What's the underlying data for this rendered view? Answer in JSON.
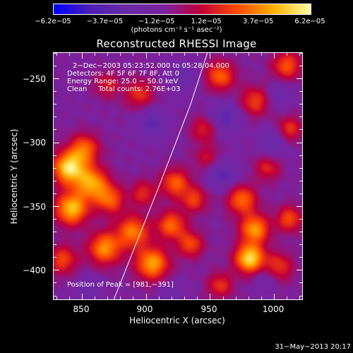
{
  "chart_data": {
    "type": "heatmap",
    "title": "Reconstructed RHESSI Image",
    "xlabel": "Heliocentric X (arcsec)",
    "ylabel": "Heliocentric Y (arcsec)",
    "xlim": [
      828,
      1022
    ],
    "ylim": [
      -423,
      -230
    ],
    "x_ticks": [
      850,
      900,
      950,
      1000
    ],
    "y_ticks": [
      -250,
      -300,
      -350,
      -400
    ],
    "x_tick_labels": [
      "850",
      "900",
      "950",
      "1000"
    ],
    "y_tick_labels": [
      "−250",
      "−300",
      "−350",
      "−400"
    ],
    "colorbar": {
      "min": -6.2e-05,
      "max": 6.2e-05,
      "tick_values": [
        -6.2e-05,
        -3.7e-05,
        -1.2e-05,
        1.2e-05,
        3.7e-05,
        6.2e-05
      ],
      "tick_labels": [
        "−6.2e−05",
        "−3.7e−05",
        "−1.2e−05",
        "1.2e−05",
        "3.7e−05",
        "6.2e−05"
      ],
      "units": "(photons cm⁻² s⁻¹ asec⁻²)",
      "colors": [
        "#0000ff",
        "#4b1fb4",
        "#6a2aa8",
        "#7a22a0",
        "#c0003a",
        "#ff4a00",
        "#ffb000",
        "#ffffa0"
      ]
    },
    "annotations": [
      "2−Dec−2003 05:23:52.000 to 05:28:04.000",
      "Detectors: 4F 5F 6F 7F 8F, Att 0",
      "Energy Range: 25.0 − 50.0 keV",
      "Clean     Total counts: 2.76E+03"
    ],
    "peak_label": "Position of Peak = [981,−391]",
    "peak": [
      981,
      -391
    ],
    "limb_curve": [
      [
        875,
        -423
      ],
      [
        910,
        -335
      ],
      [
        935,
        -270
      ],
      [
        948,
        -230
      ]
    ],
    "blobs": [
      {
        "x": 840,
        "y": -320,
        "amp": 6.2e-05,
        "s": 9
      },
      {
        "x": 842,
        "y": -352,
        "amp": 5.5e-05,
        "s": 9
      },
      {
        "x": 858,
        "y": -332,
        "amp": 4.8e-05,
        "s": 9
      },
      {
        "x": 872,
        "y": -345,
        "amp": 3.6e-05,
        "s": 8
      },
      {
        "x": 852,
        "y": -305,
        "amp": 3.8e-05,
        "s": 8
      },
      {
        "x": 835,
        "y": -392,
        "amp": 3.2e-05,
        "s": 8
      },
      {
        "x": 868,
        "y": -383,
        "amp": 4.6e-05,
        "s": 9
      },
      {
        "x": 890,
        "y": -370,
        "amp": 4.2e-05,
        "s": 9
      },
      {
        "x": 905,
        "y": -395,
        "amp": 5e-05,
        "s": 9
      },
      {
        "x": 920,
        "y": -365,
        "amp": 3.9e-05,
        "s": 8
      },
      {
        "x": 935,
        "y": -380,
        "amp": 3.3e-05,
        "s": 7
      },
      {
        "x": 923,
        "y": -332,
        "amp": 3.7e-05,
        "s": 8
      },
      {
        "x": 938,
        "y": -345,
        "amp": 3e-05,
        "s": 7
      },
      {
        "x": 898,
        "y": -340,
        "amp": 2.6e-05,
        "s": 7
      },
      {
        "x": 981,
        "y": -391,
        "amp": 6.2e-05,
        "s": 8
      },
      {
        "x": 985,
        "y": -368,
        "amp": 4.8e-05,
        "s": 8
      },
      {
        "x": 975,
        "y": -345,
        "amp": 4e-05,
        "s": 8
      },
      {
        "x": 1003,
        "y": -398,
        "amp": 3.2e-05,
        "s": 8
      },
      {
        "x": 1012,
        "y": -360,
        "amp": 3.4e-05,
        "s": 7
      },
      {
        "x": 958,
        "y": -412,
        "amp": 2.8e-05,
        "s": 7
      },
      {
        "x": 995,
        "y": -320,
        "amp": 2.5e-05,
        "s": 7
      },
      {
        "x": 958,
        "y": -248,
        "amp": 3.8e-05,
        "s": 8
      },
      {
        "x": 985,
        "y": -268,
        "amp": 3.1e-05,
        "s": 8
      },
      {
        "x": 1010,
        "y": -240,
        "amp": 3.5e-05,
        "s": 8
      },
      {
        "x": 1012,
        "y": -290,
        "amp": 3e-05,
        "s": 7
      },
      {
        "x": 895,
        "y": -262,
        "amp": 2.8e-05,
        "s": 8
      },
      {
        "x": 870,
        "y": -255,
        "amp": 2.2e-05,
        "s": 7
      },
      {
        "x": 945,
        "y": -290,
        "amp": 2.4e-05,
        "s": 7
      },
      {
        "x": 948,
        "y": -312,
        "amp": 2e-05,
        "s": 7
      },
      {
        "x": 960,
        "y": -325,
        "amp": -2.5e-05,
        "s": 8
      },
      {
        "x": 905,
        "y": -285,
        "amp": -2.4e-05,
        "s": 8
      },
      {
        "x": 963,
        "y": -280,
        "amp": -2.6e-05,
        "s": 8
      },
      {
        "x": 1000,
        "y": -300,
        "amp": -2e-05,
        "s": 8
      },
      {
        "x": 930,
        "y": -248,
        "amp": -1.8e-05,
        "s": 8
      },
      {
        "x": 1005,
        "y": -262,
        "amp": -1.5e-05,
        "s": 7
      },
      {
        "x": 995,
        "y": -405,
        "amp": -1.6e-05,
        "s": 7
      },
      {
        "x": 855,
        "y": -415,
        "amp": -1.5e-05,
        "s": 7
      },
      {
        "x": 920,
        "y": -418,
        "amp": -1.2e-05,
        "s": 7
      }
    ]
  },
  "footer": {
    "date_stamp": "31−May−2013 20:17"
  }
}
